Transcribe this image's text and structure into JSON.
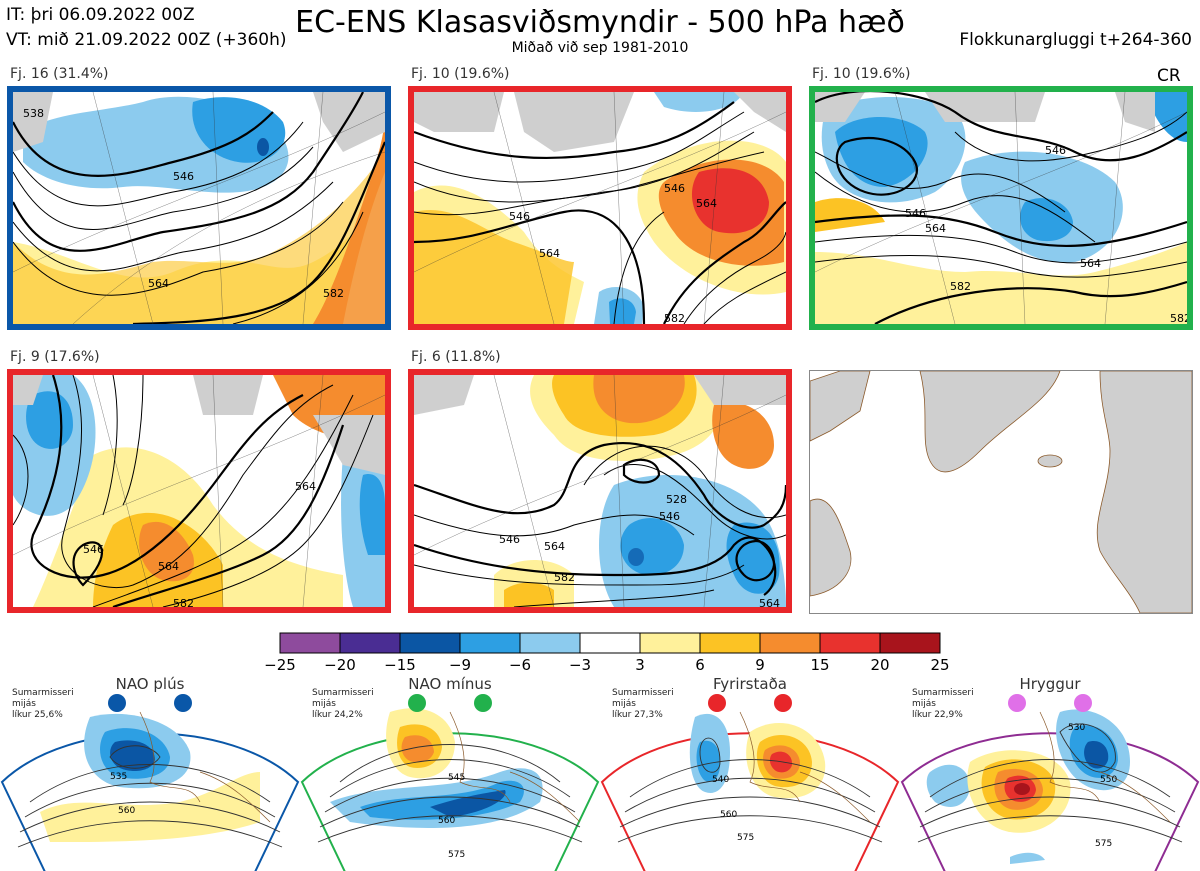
{
  "header": {
    "it": "IT: þri 06.09.2022 00Z",
    "vt": "VT: mið 21.09.2022 00Z  (+360h)",
    "title": "EC-ENS Klasasviðsmyndir - 500 hPa hæð",
    "subtitle": "Miðað við sep 1981-2010",
    "window": "Flokkunargluggi t+264-360",
    "cr": "CR"
  },
  "clusters": [
    {
      "label": "Fj. 16 (31.4%)",
      "border_color": "#0a57a8",
      "contours": [
        "538",
        "546",
        "564",
        "582"
      ]
    },
    {
      "label": "Fj. 10 (19.6%)",
      "border_color": "#e8262a",
      "contours": [
        "546",
        "546",
        "564",
        "564",
        "582"
      ]
    },
    {
      "label": "Fj. 10 (19.6%)",
      "border_color": "#22b14c",
      "contours": [
        "546",
        "546",
        "564",
        "564",
        "582",
        "582"
      ]
    },
    {
      "label": "Fj. 9 (17.6%)",
      "border_color": "#e8262a",
      "contours": [
        "546",
        "564",
        "564",
        "582"
      ]
    },
    {
      "label": "Fj. 6 (11.8%)",
      "border_color": "#e8262a",
      "contours": [
        "528",
        "546",
        "546",
        "564",
        "582",
        "564"
      ]
    }
  ],
  "colorbar": {
    "ticks": [
      "−25",
      "−20",
      "−15",
      "−9",
      "−6",
      "−3",
      "3",
      "6",
      "9",
      "15",
      "20",
      "25"
    ],
    "colors": [
      "#8e4b9d",
      "#4a2d93",
      "#0b56a4",
      "#2d9fe3",
      "#8ccbee",
      "#ffffff",
      "#fff19b",
      "#fcc324",
      "#f58c2e",
      "#e8322e",
      "#a8141c"
    ]
  },
  "regimes": [
    {
      "name": "NAO plús",
      "desc": [
        "Sumarmisseri",
        "mijás",
        "líkur 25,6%"
      ],
      "color": "#0a57a8",
      "labels": [
        "535",
        "560"
      ]
    },
    {
      "name": "NAO mínus",
      "desc": [
        "Sumarmisseri",
        "mijás",
        "líkur 24,2%"
      ],
      "color": "#22b14c",
      "labels": [
        "545",
        "560",
        "575"
      ]
    },
    {
      "name": "Fyrirstaða",
      "desc": [
        "Sumarmisseri",
        "mijás",
        "líkur 27,3%"
      ],
      "color": "#e8262a",
      "labels": [
        "540",
        "560",
        "575"
      ]
    },
    {
      "name": "Hryggur",
      "desc": [
        "Sumarmisseri",
        "mijás",
        "líkur 22,9%"
      ],
      "color": "#e070e8",
      "labels": [
        "530",
        "550",
        "575"
      ]
    }
  ]
}
